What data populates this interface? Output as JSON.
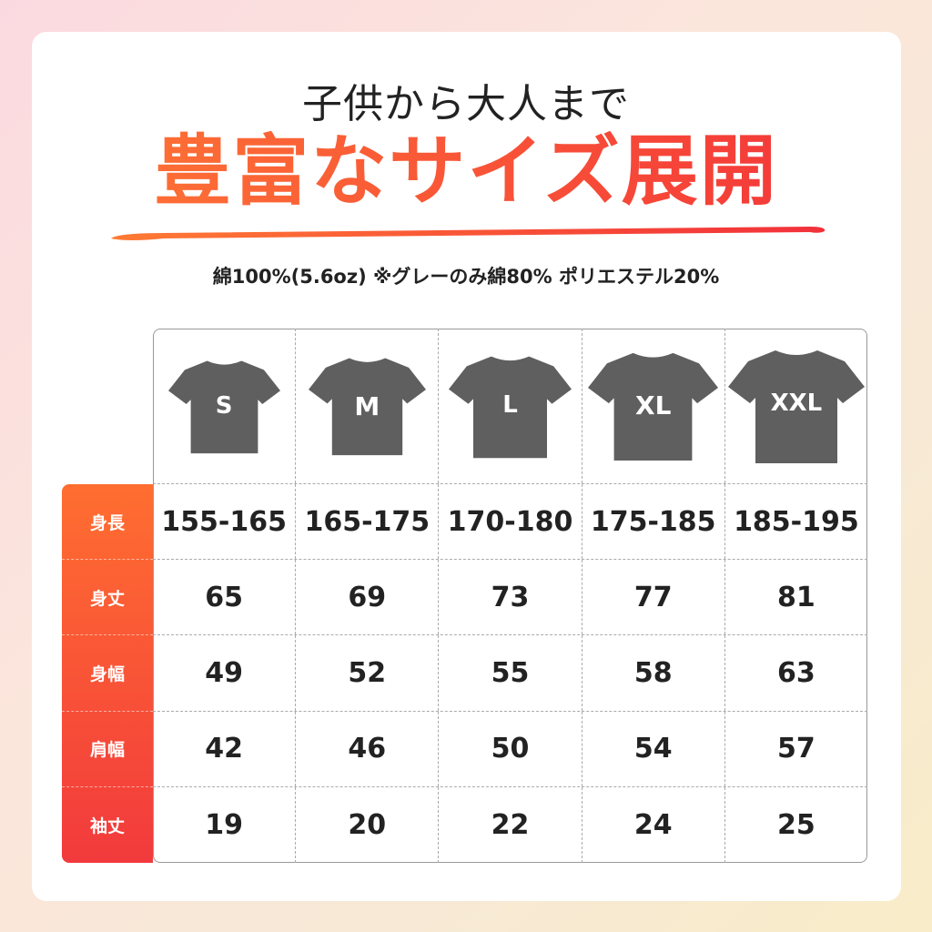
{
  "header": {
    "subtitle": "子供から大人まで",
    "title": "豊富なサイズ展開",
    "material": "綿100%(5.6oz) ※グレーのみ綿80% ポリエステル20%"
  },
  "colors": {
    "accent_start": "#ff6e30",
    "accent_end": "#f23a3d",
    "shirt": "#5f5f5f"
  },
  "sizes": [
    "S",
    "M",
    "L",
    "XL",
    "XXL"
  ],
  "rows": [
    {
      "label": "身長",
      "values": [
        "155-165",
        "165-175",
        "170-180",
        "175-185",
        "185-195"
      ]
    },
    {
      "label": "身丈",
      "values": [
        "65",
        "69",
        "73",
        "77",
        "81"
      ]
    },
    {
      "label": "身幅",
      "values": [
        "49",
        "52",
        "55",
        "58",
        "63"
      ]
    },
    {
      "label": "肩幅",
      "values": [
        "42",
        "46",
        "50",
        "54",
        "57"
      ]
    },
    {
      "label": "袖丈",
      "values": [
        "19",
        "20",
        "22",
        "24",
        "25"
      ]
    }
  ]
}
